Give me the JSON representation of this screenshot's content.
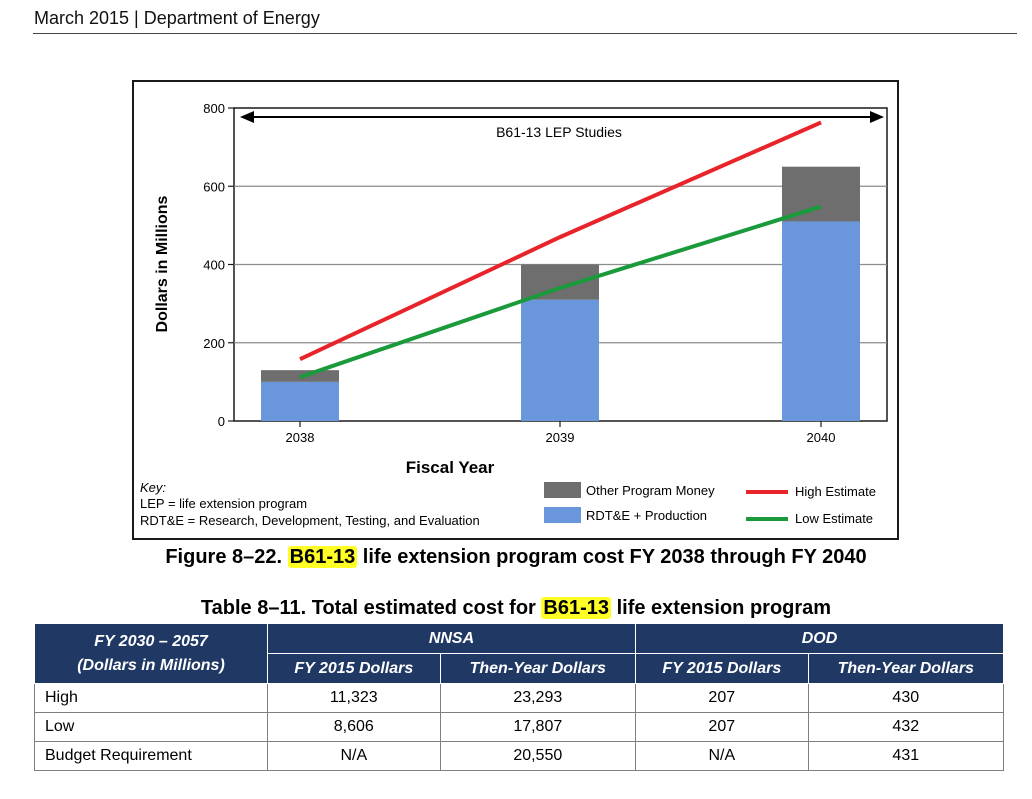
{
  "header": {
    "text": "March 2015 | Department of Energy"
  },
  "chart_data": {
    "type": "bar",
    "stacked": true,
    "categories": [
      "2038",
      "2039",
      "2040"
    ],
    "series": [
      {
        "name": "RDT&E + Production",
        "color": "#6a97dc",
        "values": [
          100,
          310,
          510
        ]
      },
      {
        "name": "Other Program Money",
        "color": "#6e6e6e",
        "values": [
          30,
          90,
          140
        ]
      }
    ],
    "lines": [
      {
        "name": "High Estimate",
        "color": "#e8242a",
        "values": [
          158,
          470,
          763
        ]
      },
      {
        "name": "Low Estimate",
        "color": "#1a9a3a",
        "values": [
          112,
          340,
          548
        ]
      }
    ],
    "ylim": [
      0,
      800
    ],
    "yticks": [
      0,
      200,
      400,
      600,
      800
    ],
    "ylabel": "Dollars in Millions",
    "xlabel": "Fiscal Year",
    "annotation": "B61-13 LEP Studies",
    "key": {
      "title": "Key:",
      "lines": [
        "LEP = life extension program",
        "RDT&E = Research, Development, Testing, and Evaluation"
      ]
    }
  },
  "figure_caption": {
    "prefix": "Figure 8–22.",
    "highlight": "B61-13",
    "suffix": "life extension program cost FY 2038 through FY 2040"
  },
  "table_caption": {
    "prefix": "Table 8–11.  Total estimated cost for",
    "highlight": "B61-13",
    "suffix": "life extension program"
  },
  "table": {
    "corner_line1": "FY 2030 – 2057",
    "corner_line2": "(Dollars in Millions)",
    "group_nnsa": "NNSA",
    "group_dod": "DOD",
    "sub_headers": [
      "FY 2015 Dollars",
      "Then-Year Dollars",
      "FY 2015 Dollars",
      "Then-Year Dollars"
    ],
    "rows": [
      {
        "label": "High",
        "cells": [
          "11,323",
          "23,293",
          "207",
          "430"
        ]
      },
      {
        "label": "Low",
        "cells": [
          "8,606",
          "17,807",
          "207",
          "432"
        ]
      },
      {
        "label": "Budget Requirement",
        "cells": [
          "N/A",
          "20,550",
          "N/A",
          "431"
        ]
      }
    ]
  }
}
